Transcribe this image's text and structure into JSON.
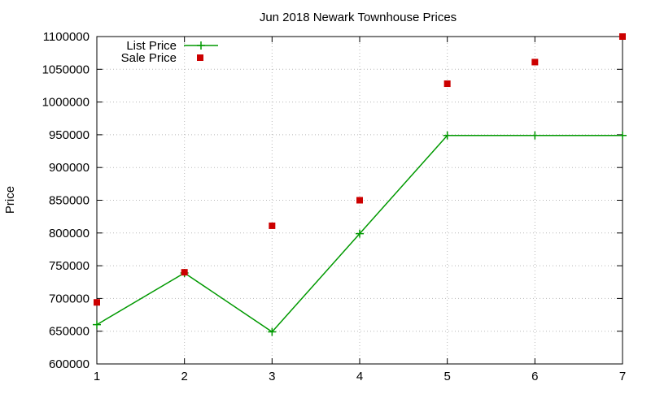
{
  "chart_data": {
    "type": "line",
    "title": "Jun 2018 Newark Townhouse Prices",
    "xlabel": "",
    "ylabel": "Price",
    "x": [
      1,
      2,
      3,
      4,
      5,
      6,
      7
    ],
    "xlim": [
      1,
      7
    ],
    "ylim": [
      600000,
      1100000
    ],
    "xticks": [
      "1",
      "2",
      "3",
      "4",
      "5",
      "6",
      "7"
    ],
    "yticks": [
      "600000",
      "650000",
      "700000",
      "750000",
      "800000",
      "850000",
      "900000",
      "950000",
      "1000000",
      "1050000",
      "1100000"
    ],
    "grid": true,
    "legend_position": "top-left",
    "series": [
      {
        "name": "List Price",
        "kind": "line",
        "marker": "plus",
        "color": "#009900",
        "values": [
          660000,
          739000,
          649000,
          799000,
          949000,
          949000,
          949000
        ]
      },
      {
        "name": "Sale Price",
        "kind": "scatter",
        "marker": "square",
        "color": "#cc0000",
        "values": [
          694000,
          740000,
          811000,
          850000,
          1028000,
          1061000,
          1100000
        ]
      }
    ]
  }
}
